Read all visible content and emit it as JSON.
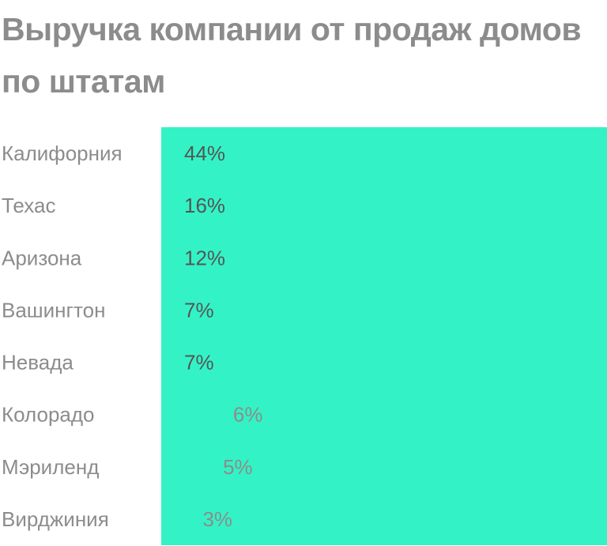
{
  "title": "Выручка компании от продаж домов по штатам",
  "colors": {
    "bar": "#33f3c6",
    "title": "#8c8c8c",
    "category_label": "#8c8c8c",
    "value_inside": "#555555",
    "value_outside": "#8c8c8c"
  },
  "chart_data": {
    "type": "bar",
    "orientation": "horizontal",
    "title": "Выручка компании от продаж домов по штатам",
    "categories": [
      "Калифорния",
      "Техас",
      "Аризона",
      "Вашингтон",
      "Невада",
      "Колорадо",
      "Мэриленд",
      "Вирджиния"
    ],
    "values": [
      44,
      16,
      12,
      7,
      7,
      6,
      5,
      3
    ],
    "value_labels": [
      "44%",
      "16%",
      "12%",
      "7%",
      "7%",
      "6%",
      "5%",
      "3%"
    ],
    "unit": "%",
    "xlim": [
      0,
      44
    ],
    "grid": false,
    "legend": "none"
  }
}
